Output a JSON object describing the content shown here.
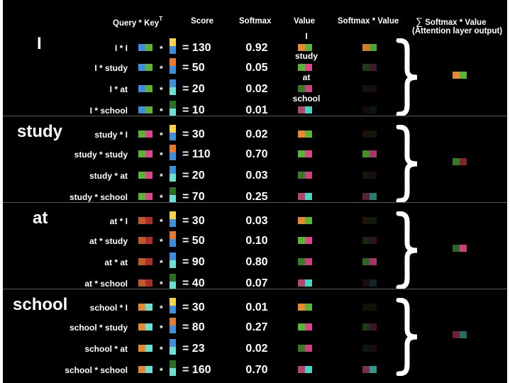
{
  "headers": {
    "qk": "Query * Key",
    "qk_sup": "T",
    "score": "Score",
    "softmax": "Softmax",
    "value": "Value",
    "smv": "Softmax * Value",
    "sum_symbol": "∑",
    "sum": "Softmax * Value",
    "sum_sub": "(Attention layer output)"
  },
  "colors": {
    "I": [
      "#e48a32",
      "#5cb338"
    ],
    "study": [
      "#5cb338",
      "#d54a86"
    ],
    "at": [
      "#3b7a2a",
      "#c9427a"
    ],
    "school": [
      "#b0456f",
      "#49d3c4"
    ],
    "key_I": [
      "#f4d34a",
      "#3e8edc"
    ],
    "key_study": [
      "#e57a32",
      "#3e8edc"
    ],
    "key_at": [
      "#3e8edc",
      "#6ee0d2"
    ],
    "key_school": [
      "#2d6e25",
      "#6ee0d2"
    ],
    "q_I": [
      "#3e8edc",
      "#5cb338"
    ],
    "q_study": [
      "#5cb338",
      "#d54a86"
    ],
    "q_at": [
      "#c05a2a",
      "#a8302c"
    ],
    "q_school": [
      "#e58a30",
      "#6ee0d2"
    ]
  },
  "ops": {
    "times": "*",
    "equals": "="
  },
  "groups": [
    {
      "word": "I",
      "qcolor": "q_I",
      "output": [
        "#e48a32",
        "#5cb338"
      ],
      "rows": [
        {
          "label": "I * I",
          "key": "key_I",
          "score": "130",
          "softmax": "0.92",
          "value": "I",
          "value_label": "I",
          "weighted": [
            "#d07e2e",
            "#54a333"
          ]
        },
        {
          "label": "I * study",
          "key": "key_study",
          "score": "50",
          "softmax": "0.05",
          "value": "study",
          "value_label": "study",
          "weighted": [
            "#223a1a",
            "#3d1a2a"
          ]
        },
        {
          "label": "I * at",
          "key": "key_at",
          "score": "20",
          "softmax": "0.02",
          "value": "at",
          "value_label": "at",
          "weighted": [
            "#0c160a",
            "#180a10"
          ]
        },
        {
          "label": "I * school",
          "key": "key_school",
          "score": "10",
          "softmax": "0.01",
          "value": "school",
          "value_label": "school",
          "weighted": [
            "#140a0e",
            "#0a1614"
          ]
        }
      ]
    },
    {
      "word": "study",
      "qcolor": "q_study",
      "output": [
        "#3b7a2a",
        "#7a2a2a"
      ],
      "rows": [
        {
          "label": "study * I",
          "key": "key_I",
          "score": "30",
          "softmax": "0.02",
          "value": "I",
          "value_label": "",
          "weighted": [
            "#1a1208",
            "#0e1a0a"
          ]
        },
        {
          "label": "study * study",
          "key": "key_study",
          "score": "110",
          "softmax": "0.70",
          "value": "study",
          "value_label": "",
          "weighted": [
            "#449028",
            "#a53868"
          ]
        },
        {
          "label": "study * at",
          "key": "key_at",
          "score": "20",
          "softmax": "0.03",
          "value": "at",
          "value_label": "",
          "weighted": [
            "#0e1a0a",
            "#1a0a12"
          ]
        },
        {
          "label": "study * school",
          "key": "key_school",
          "score": "70",
          "softmax": "0.25",
          "value": "school",
          "value_label": "",
          "weighted": [
            "#5a2038",
            "#2a7a70"
          ]
        }
      ]
    },
    {
      "word": "at",
      "qcolor": "q_at",
      "output": [
        "#2f6424",
        "#c9427a"
      ],
      "rows": [
        {
          "label": "at * I",
          "key": "key_I",
          "score": "30",
          "softmax": "0.03",
          "value": "I",
          "value_label": "",
          "weighted": [
            "#1e1508",
            "#0e1a0a"
          ]
        },
        {
          "label": "at * study",
          "key": "key_study",
          "score": "50",
          "softmax": "0.10",
          "value": "study",
          "value_label": "",
          "weighted": [
            "#15280f",
            "#2e1220"
          ]
        },
        {
          "label": "at * at",
          "key": "key_at",
          "score": "90",
          "softmax": "0.80",
          "value": "at",
          "value_label": "",
          "weighted": [
            "#306222",
            "#a2356a"
          ]
        },
        {
          "label": "at * school",
          "key": "key_school",
          "score": "40",
          "softmax": "0.07",
          "value": "school",
          "value_label": "",
          "weighted": [
            "#1a0c12",
            "#0e2624"
          ]
        }
      ]
    },
    {
      "word": "school",
      "qcolor": "q_school",
      "output": [
        "#6a2038",
        "#2a6a64"
      ],
      "rows": [
        {
          "label": "school * I",
          "key": "key_I",
          "score": "30",
          "softmax": "0.01",
          "value": "I",
          "value_label": "",
          "weighted": [
            "#140e06",
            "#0a1408"
          ]
        },
        {
          "label": "school * study",
          "key": "key_study",
          "score": "80",
          "softmax": "0.27",
          "value": "study",
          "value_label": "",
          "weighted": [
            "#1e3a14",
            "#3e1628"
          ]
        },
        {
          "label": "school * at",
          "key": "key_at",
          "score": "23",
          "softmax": "0.02",
          "value": "at",
          "value_label": "",
          "weighted": [
            "#0c160a",
            "#180a10"
          ]
        },
        {
          "label": "school * school",
          "key": "key_school",
          "score": "160",
          "softmax": "0.70",
          "value": "school",
          "value_label": "",
          "weighted": [
            "#7a3050",
            "#36948a"
          ]
        }
      ]
    }
  ]
}
